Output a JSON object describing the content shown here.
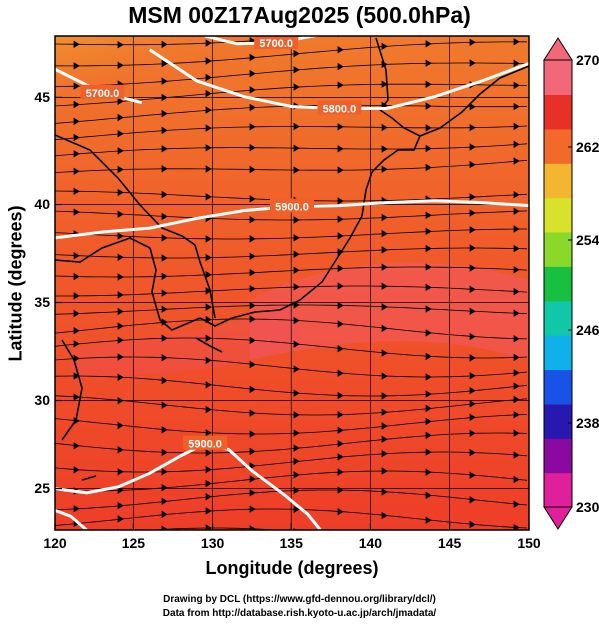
{
  "title": "MSM 00Z17Aug2025 (500.0hPa)",
  "axes": {
    "xlabel": "Longitude (degrees)",
    "ylabel": "Latitude  (degrees)",
    "xticks": [
      "120",
      "125",
      "130",
      "135",
      "140",
      "145",
      "150"
    ],
    "yticks": [
      "25",
      "30",
      "35",
      "40",
      "45"
    ],
    "xlim": [
      120,
      150
    ],
    "ylim": [
      22.4,
      47.6
    ]
  },
  "colorbar": {
    "labels": [
      "270",
      "262",
      "254",
      "246",
      "238",
      "230"
    ],
    "range": [
      230,
      270
    ],
    "colors": [
      "#e0209a",
      "#8a0aa0",
      "#2818b0",
      "#1852e6",
      "#10b0e8",
      "#10c8a8",
      "#18c040",
      "#8ad82a",
      "#d8e22a",
      "#f2b630",
      "#f26a2a",
      "#e63028",
      "#f26878"
    ]
  },
  "contours": [
    {
      "label": "5900.0",
      "points": [
        [
          120,
          37.3
        ],
        [
          123,
          37.6
        ],
        [
          126,
          37.8
        ],
        [
          129,
          38.3
        ],
        [
          132,
          38.7
        ],
        [
          135,
          38.9
        ],
        [
          138,
          38.95
        ],
        [
          141,
          39.1
        ],
        [
          144,
          39.2
        ],
        [
          147,
          39.1
        ],
        [
          150,
          38.95
        ]
      ]
    },
    {
      "label": "5800.0",
      "points": [
        [
          126,
          46.9
        ],
        [
          129,
          45.3
        ],
        [
          132,
          44.5
        ],
        [
          135,
          44.0
        ],
        [
          138,
          43.9
        ],
        [
          141,
          43.9
        ],
        [
          144,
          44.5
        ],
        [
          147,
          45.3
        ],
        [
          150,
          46.2
        ]
      ]
    },
    {
      "label": "5700.0",
      "points": [
        [
          120,
          45.9
        ],
        [
          123,
          44.7
        ],
        [
          125.5,
          44.2
        ]
      ]
    },
    {
      "label": "5700.0",
      "points": [
        [
          129.5,
          47.6
        ],
        [
          131.5,
          47.2
        ],
        [
          134,
          47.25
        ],
        [
          137,
          47.7
        ]
      ]
    },
    {
      "label": "5900.0",
      "points": [
        [
          120,
          24.5
        ],
        [
          122,
          24.3
        ],
        [
          124,
          24.6
        ],
        [
          126,
          25.3
        ],
        [
          128,
          26.2
        ],
        [
          129.5,
          26.8
        ],
        [
          131,
          26.5
        ],
        [
          132.5,
          25.4
        ],
        [
          134.5,
          24.2
        ],
        [
          136,
          23.2
        ],
        [
          136.8,
          22.4
        ]
      ]
    },
    {
      "label": "",
      "points": [
        [
          120,
          23.4
        ],
        [
          121,
          23.1
        ],
        [
          122,
          22.4
        ]
      ]
    }
  ],
  "credits": [
    "Drawing by DCL (https://www.gfd-dennou.org/library/dcl/)",
    "Data from http://database.rish.kyoto-u.ac.jp/arch/jmadata/"
  ]
}
